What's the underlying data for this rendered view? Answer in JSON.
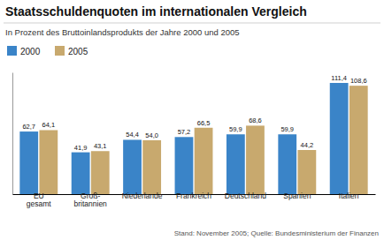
{
  "chart_data": {
    "type": "bar",
    "title": "Staatsschuldenquoten im internationalen Vergleich",
    "subtitle": "In Prozent des Bruttoinlandsprodukts der Jahre 2000 und 2005",
    "footer": "Stand: November 2005; Quelle: Bundesministerium der Finanzen",
    "categories": [
      "EU\ngesamt",
      "Groß-\nbritannien",
      "Niederlande",
      "Frankreich",
      "Deutschland",
      "Spanien",
      "Italien"
    ],
    "series": [
      {
        "name": "2000",
        "color": "#3a84c8",
        "values": [
          62.7,
          41.9,
          54.4,
          57.2,
          59.9,
          59.9,
          111.4
        ],
        "value_labels": [
          "62,7",
          "41,9",
          "54,4",
          "57,2",
          "59,9",
          "59,9",
          "111,4"
        ]
      },
      {
        "name": "2005",
        "color": "#c8a96e",
        "values": [
          64.1,
          43.1,
          54.0,
          66.5,
          68.6,
          44.2,
          108.6
        ],
        "value_labels": [
          "64,1",
          "43,1",
          "54,0",
          "66,5",
          "68,6",
          "44,2",
          "108,6"
        ]
      }
    ],
    "ylim": [
      0,
      122
    ],
    "data_labels": true,
    "tick_labels": "x",
    "grid": false,
    "legend": "upper left"
  }
}
